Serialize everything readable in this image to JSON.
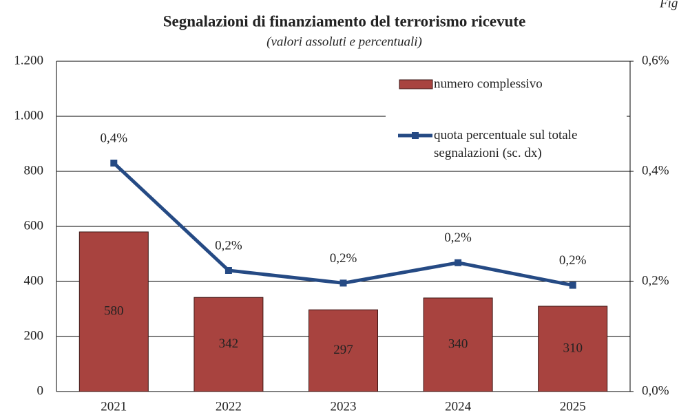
{
  "chart_data": {
    "type": "bar_line",
    "title": "Segnalazioni di finanziamento del terrorismo ricevute",
    "subtitle": "(valori assoluti e percentuali)",
    "annotation": "Fig",
    "categories": [
      "2021",
      "2022",
      "2023",
      "2024",
      "2025"
    ],
    "series": [
      {
        "name": "numero complessivo",
        "type": "bar",
        "color": "#a8433f",
        "values": [
          580,
          342,
          297,
          340,
          310
        ]
      },
      {
        "name": "quota percentuale sul totale segnalazioni (sc. dx)",
        "type": "line",
        "axis": "y2",
        "color": "#254a84",
        "values": [
          0.415,
          0.22,
          0.197,
          0.234,
          0.193
        ],
        "value_labels": [
          "0,4%",
          "0,2%",
          "0,2%",
          "0,2%",
          "0,2%"
        ]
      }
    ],
    "ylim": [
      0,
      1200
    ],
    "yticks": [
      0,
      200,
      400,
      600,
      800,
      {
        "value": 1000,
        "label": "1.000"
      },
      {
        "value": 1200,
        "label": "1.200"
      }
    ],
    "y2lim": [
      0,
      0.6
    ],
    "y2ticks": [
      {
        "value": 0,
        "label": "0,0%"
      },
      {
        "value": 0.2,
        "label": "0,2%"
      },
      {
        "value": 0.4,
        "label": "0,4%"
      },
      {
        "value": 0.6,
        "label": "0,6%"
      }
    ],
    "grid": true,
    "legend": "top-right"
  }
}
